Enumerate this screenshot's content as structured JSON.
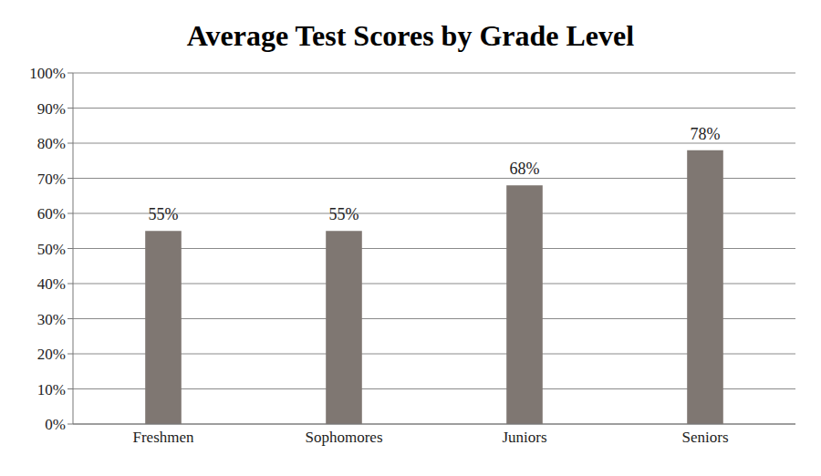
{
  "chart_data": {
    "type": "bar",
    "title": "Average Test Scores by Grade Level",
    "categories": [
      "Freshmen",
      "Sophomores",
      "Juniors",
      "Seniors"
    ],
    "values": [
      55,
      55,
      68,
      78
    ],
    "value_labels": [
      "55%",
      "55%",
      "68%",
      "78%"
    ],
    "color": "#7f7772",
    "ylim": [
      0,
      100
    ],
    "yticks": [
      {
        "value": 0,
        "label": "0%"
      },
      {
        "value": 10,
        "label": "10%"
      },
      {
        "value": 20,
        "label": "20%"
      },
      {
        "value": 30,
        "label": "30%"
      },
      {
        "value": 40,
        "label": "40%"
      },
      {
        "value": 50,
        "label": "50%"
      },
      {
        "value": 60,
        "label": "60%"
      },
      {
        "value": 70,
        "label": "70%"
      },
      {
        "value": 80,
        "label": "80%"
      },
      {
        "value": 90,
        "label": "90%"
      },
      {
        "value": 100,
        "label": "100%"
      }
    ],
    "grid": true,
    "data_labels": true
  }
}
